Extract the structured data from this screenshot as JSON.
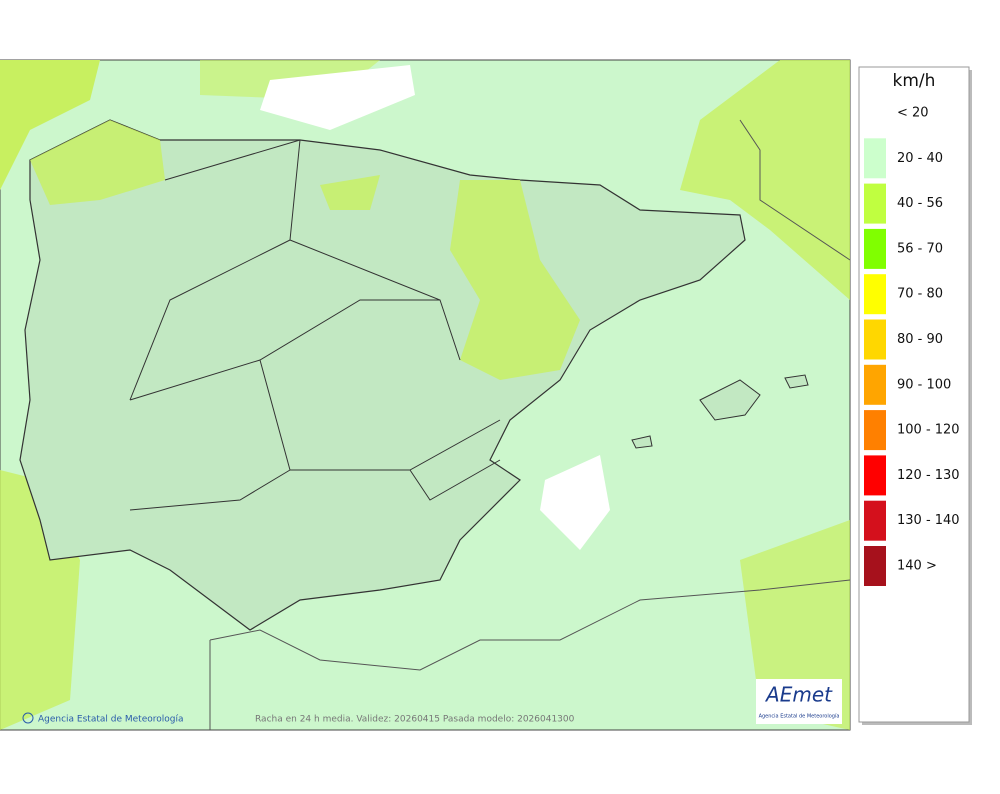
{
  "legend": {
    "title": "km/h",
    "items": [
      {
        "label": "< 20",
        "color": "#ffffff"
      },
      {
        "label": "20 - 40",
        "color": "#ccffcc"
      },
      {
        "label": "40 - 56",
        "color": "#c0ff40"
      },
      {
        "label": "56 - 70",
        "color": "#80ff00"
      },
      {
        "label": "70 - 80",
        "color": "#ffff00"
      },
      {
        "label": "80 - 90",
        "color": "#ffd700"
      },
      {
        "label": "90 - 100",
        "color": "#ffa500"
      },
      {
        "label": "100 - 120",
        "color": "#ff8000"
      },
      {
        "label": "120 - 130",
        "color": "#ff0000"
      },
      {
        "label": "130 - 140",
        "color": "#d4101c"
      },
      {
        "label": "140 >",
        "color": "#a6111c"
      }
    ]
  },
  "footer": {
    "credit": "Agencia Estatal de Meteorología",
    "caption": "Racha en 24 h media. Validez: 20260415 Pasada modelo: 2026041300"
  },
  "logo": {
    "name": "AEmet",
    "subtitle": "Agencia Estatal de Meteorología"
  }
}
